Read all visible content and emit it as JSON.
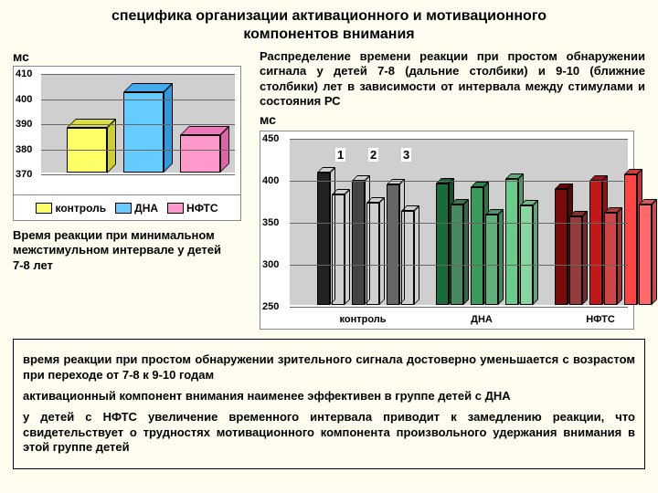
{
  "title_l1": "специфика организации активационного и мотивационного",
  "title_l2": "компонентов внимания",
  "ms": "мс",
  "desc": "Распределение времени реакции при простом обнаружении сигнала у детей 7-8 (дальние столбики) и 9-10 (ближние столбики) лет в зависимости от интервала между стимулами и состояния РС",
  "caption": "Время реакции при минимальном межстимульном интервале у детей 7-8 лет",
  "chart1": {
    "ylim": [
      370,
      410
    ],
    "ytick": 10,
    "bars": [
      {
        "v": 388,
        "face": "#ffff66",
        "top": "#dddd44",
        "side": "#cccc33"
      },
      {
        "v": 402,
        "face": "#66ccff",
        "top": "#44aaee",
        "side": "#3399dd"
      },
      {
        "v": 385,
        "face": "#ff99cc",
        "top": "#ee77bb",
        "side": "#dd66aa"
      }
    ],
    "legend": [
      {
        "sw": "#ffff66",
        "t": "контроль"
      },
      {
        "sw": "#66ccff",
        "t": "ДНА"
      },
      {
        "sw": "#ff99cc",
        "t": "НФТС"
      }
    ]
  },
  "chart2": {
    "ylim": [
      250,
      450
    ],
    "ytick": 50,
    "series_labels": [
      "1",
      "2",
      "3"
    ],
    "xlabels": [
      "контроль",
      "ДНА",
      "НФТС"
    ],
    "groups": [
      {
        "x": 30,
        "colors": [
          "#222",
          "#444",
          "#666"
        ],
        "pairs": [
          [
            408,
            382
          ],
          [
            398,
            372
          ],
          [
            393,
            362
          ]
        ]
      },
      {
        "x": 160,
        "colors": [
          "#1a6b3a",
          "#3a9b5a",
          "#6acb8a"
        ],
        "pairs": [
          [
            395,
            370
          ],
          [
            390,
            358
          ],
          [
            400,
            368
          ]
        ]
      },
      {
        "x": 290,
        "colors": [
          "#7a0b0b",
          "#c21818",
          "#ff4444"
        ],
        "pairs": [
          [
            388,
            355
          ],
          [
            398,
            360
          ],
          [
            405,
            370
          ]
        ]
      }
    ]
  },
  "box": {
    "p1": "время реакции при простом обнаружении зрительного сигнала достоверно уменьшается с возрастом при переходе от 7-8 к 9-10 годам",
    "p2": "активационный компонент внимания наименее эффективен в группе детей с ДНА",
    "p3": "у детей с НФТС увеличение временного интервала приводит к замедлению реакции, что свидетельствует о трудностях мотивационного компонента произвольного удержания внимания в этой группе детей"
  }
}
